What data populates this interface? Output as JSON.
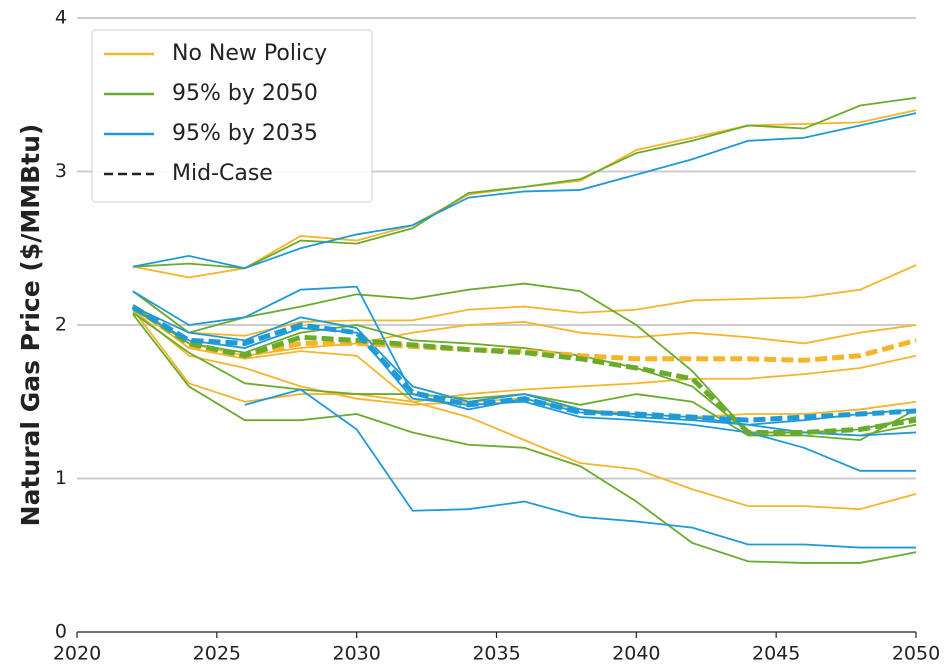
{
  "chart_data": {
    "type": "line",
    "y_label": "Natural Gas Price ($/MMBtu)",
    "x": [
      2022,
      2024,
      2026,
      2028,
      2030,
      2032,
      2034,
      2036,
      2038,
      2040,
      2042,
      2044,
      2046,
      2048,
      2050
    ],
    "xlim": [
      2020,
      2050
    ],
    "xticks": [
      2020,
      2025,
      2030,
      2035,
      2040,
      2045,
      2050
    ],
    "ylim": [
      0,
      4
    ],
    "yticks": [
      0,
      1,
      2,
      3,
      4
    ],
    "grid": true,
    "legend": "upper left",
    "series": [
      {
        "name": "No New Policy",
        "color": "#f5b52a",
        "lines": [
          [
            2.38,
            2.31,
            2.37,
            2.58,
            2.55,
            2.65,
            2.85,
            2.9,
            2.94,
            3.14,
            3.22,
            3.3,
            3.31,
            3.32,
            3.4
          ],
          [
            2.22,
            1.95,
            1.93,
            2.02,
            2.03,
            2.03,
            2.1,
            2.12,
            2.08,
            2.1,
            2.16,
            2.17,
            2.18,
            2.23,
            2.39
          ],
          [
            2.13,
            1.88,
            1.8,
            1.85,
            1.88,
            1.95,
            2.0,
            2.02,
            1.95,
            1.92,
            1.95,
            1.92,
            1.88,
            1.95,
            2.0
          ],
          [
            2.12,
            1.85,
            1.78,
            1.83,
            1.8,
            1.5,
            1.55,
            1.58,
            1.6,
            1.62,
            1.65,
            1.65,
            1.68,
            1.72,
            1.8
          ],
          [
            2.1,
            1.8,
            1.72,
            1.6,
            1.52,
            1.48,
            1.5,
            1.52,
            1.45,
            1.42,
            1.4,
            1.42,
            1.42,
            1.45,
            1.5
          ],
          [
            2.1,
            1.62,
            1.5,
            1.55,
            1.55,
            1.5,
            1.4,
            1.25,
            1.1,
            1.06,
            0.93,
            0.82,
            0.82,
            0.8,
            0.9
          ]
        ],
        "mid_case": [
          2.12,
          1.87,
          1.8,
          1.88,
          1.88,
          1.86,
          1.84,
          1.83,
          1.8,
          1.78,
          1.78,
          1.78,
          1.77,
          1.8,
          1.9
        ]
      },
      {
        "name": "95% by 2050",
        "color": "#6aab2e",
        "lines": [
          [
            2.38,
            2.4,
            2.37,
            2.55,
            2.53,
            2.63,
            2.86,
            2.9,
            2.95,
            3.12,
            3.2,
            3.3,
            3.28,
            3.43,
            3.48
          ],
          [
            2.22,
            1.95,
            2.05,
            2.12,
            2.2,
            2.17,
            2.23,
            2.27,
            2.22,
            2.0,
            1.7,
            1.3,
            1.3,
            1.32,
            1.4
          ],
          [
            2.12,
            1.88,
            1.82,
            1.95,
            2.0,
            1.9,
            1.88,
            1.85,
            1.8,
            1.72,
            1.6,
            1.3,
            1.3,
            1.28,
            1.35
          ],
          [
            2.08,
            1.82,
            1.62,
            1.58,
            1.55,
            1.55,
            1.52,
            1.55,
            1.48,
            1.55,
            1.5,
            1.28,
            1.28,
            1.25,
            1.45
          ],
          [
            2.07,
            1.6,
            1.38,
            1.38,
            1.42,
            1.3,
            1.22,
            1.2,
            1.08,
            0.85,
            0.58,
            0.46,
            0.45,
            0.45,
            0.52
          ]
        ],
        "mid_case": [
          2.12,
          1.88,
          1.8,
          1.92,
          1.9,
          1.87,
          1.84,
          1.82,
          1.78,
          1.72,
          1.65,
          1.3,
          1.3,
          1.32,
          1.38
        ]
      },
      {
        "name": "95% by 2035",
        "color": "#1f9ad6",
        "lines": [
          [
            2.38,
            2.45,
            2.37,
            2.5,
            2.59,
            2.65,
            2.83,
            2.87,
            2.88,
            2.98,
            3.08,
            3.2,
            3.22,
            3.3,
            3.38
          ],
          [
            2.22,
            2.0,
            2.05,
            2.23,
            2.25,
            1.55,
            1.45,
            1.52,
            1.43,
            1.42,
            1.4,
            1.35,
            1.38,
            1.42,
            1.45
          ],
          [
            2.12,
            1.95,
            1.9,
            2.05,
            1.98,
            1.6,
            1.5,
            1.55,
            1.45,
            1.4,
            1.38,
            1.35,
            1.3,
            1.28,
            1.3
          ],
          [
            2.1,
            1.9,
            1.85,
            1.98,
            1.95,
            1.52,
            1.48,
            1.5,
            1.4,
            1.38,
            1.35,
            1.3,
            1.2,
            1.05,
            1.05
          ],
          [
            null,
            null,
            1.48,
            1.58,
            1.32,
            0.79,
            0.8,
            0.85,
            0.75,
            0.72,
            0.68,
            0.57,
            0.57,
            0.55,
            0.55
          ]
        ],
        "mid_case": [
          2.12,
          1.9,
          1.88,
          2.0,
          1.95,
          1.56,
          1.48,
          1.52,
          1.43,
          1.42,
          1.4,
          1.38,
          1.4,
          1.42,
          1.44
        ]
      }
    ],
    "mid_case_legend": {
      "name": "Mid-Case",
      "color": "#222222"
    }
  }
}
